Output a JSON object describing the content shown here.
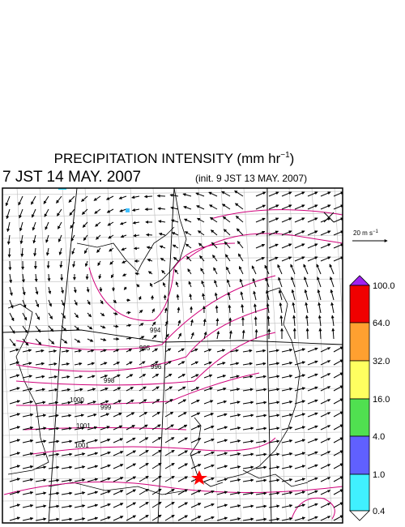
{
  "header": {
    "title": "PRECIPITATION INTENSITY (mm hr",
    "title_exp": "−1",
    "title_end": ")",
    "valid_time": "7 JST 14 MAY. 2007",
    "init_time": "(init. 9 JST 13 MAY. 2007)"
  },
  "reference_vector": {
    "label": "20 m s",
    "label_exp": "−1"
  },
  "colorbar": {
    "labels": [
      "100.0",
      "64.0",
      "32.0",
      "16.0",
      "4.0",
      "1.0",
      "0.4"
    ]
  },
  "isobars": {
    "labels": [
      "994",
      "995",
      "996",
      "998",
      "999",
      "1000",
      "1001",
      "1001"
    ]
  }
}
